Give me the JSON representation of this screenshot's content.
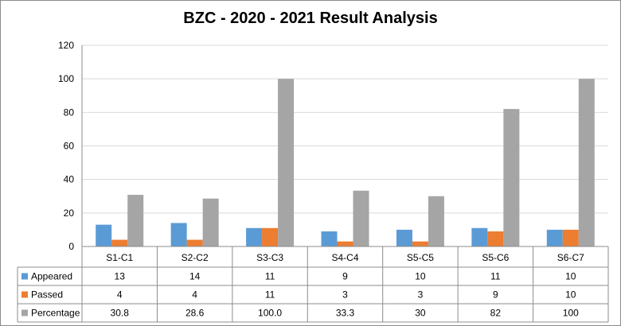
{
  "chart_data": {
    "type": "bar",
    "title": "BZC - 2020 - 2021 Result Analysis",
    "categories": [
      "S1-C1",
      "S2-C2",
      "S3-C3",
      "S4-C4",
      "S5-C5",
      "S5-C6",
      "S6-C7"
    ],
    "series": [
      {
        "name": "Appeared",
        "color": "#5b9bd5",
        "values": [
          13,
          14,
          11,
          9,
          10,
          11,
          10
        ],
        "labels": [
          "13",
          "14",
          "11",
          "9",
          "10",
          "11",
          "10"
        ]
      },
      {
        "name": "Passed",
        "color": "#ed7d31",
        "values": [
          4,
          4,
          11,
          3,
          3,
          9,
          10
        ],
        "labels": [
          "4",
          "4",
          "11",
          "3",
          "3",
          "9",
          "10"
        ]
      },
      {
        "name": "Percentage",
        "color": "#a5a5a5",
        "values": [
          30.8,
          28.6,
          100.0,
          33.3,
          30,
          82,
          100
        ],
        "labels": [
          "30.8",
          "28.6",
          "100.0",
          "33.3",
          "30",
          "82",
          "100"
        ]
      }
    ],
    "ylim": [
      0,
      120
    ],
    "yticks": [
      "0",
      "20",
      "40",
      "60",
      "80",
      "100",
      "120"
    ],
    "grid": true,
    "legend": "data-table-left",
    "xlabel": "",
    "ylabel": ""
  }
}
